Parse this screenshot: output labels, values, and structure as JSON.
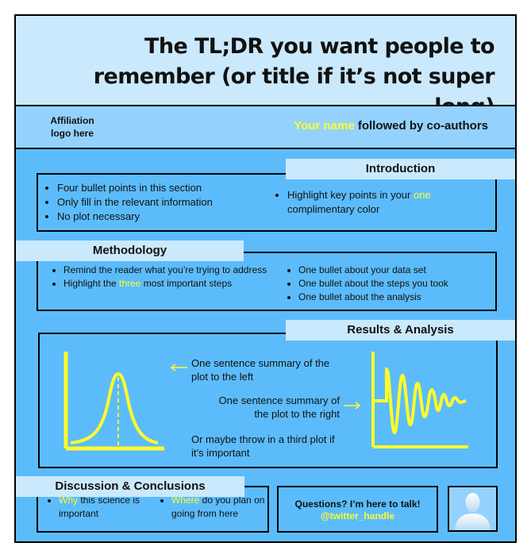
{
  "title": {
    "text": "The TL;DR you want people to remember (or title if it’s not super long)"
  },
  "header": {
    "affiliation": "Affiliation logo here",
    "author_name": "Your name",
    "author_rest": " followed by co-authors"
  },
  "introduction": {
    "heading": "Introduction",
    "bullets_left": [
      "Four bullet points in this section",
      "Only fill in the relevant information",
      "No plot necessary"
    ],
    "bullet_right_pre": "Highlight key points in your ",
    "bullet_right_hl": "one",
    "bullet_right_post": " complimentary color"
  },
  "methodology": {
    "heading": "Methodology",
    "bullet1": "Remind the reader what you’re trying to address",
    "bullet2_pre": "Highlight the ",
    "bullet2_hl": "three",
    "bullet2_post": " most important steps",
    "bullets_right": [
      "One bullet about your data set",
      "One bullet about the steps you took",
      "One bullet about the analysis"
    ]
  },
  "results": {
    "heading": "Results & Analysis",
    "summary_left": "One sentence summary of the plot to the left",
    "summary_right": "One sentence summary of the plot to the right",
    "third_plot": "Or maybe throw in a third plot if it’s important"
  },
  "discussion": {
    "heading": "Discussion & Conclusions",
    "b1_hl": "Why",
    "b1_rest": " this science is important",
    "b2_hl": "Where",
    "b2_rest": " do you plan on going from here"
  },
  "contact": {
    "question": "Questions? I’m here to talk!",
    "handle": "@twitter_handle"
  },
  "colors": {
    "background": "#5cbcfb",
    "light_panel": "#cbe9fd",
    "mid_panel": "#94d2fd",
    "accent": "#fffb2a"
  },
  "icons": {
    "avatar": "person-silhouette-icon",
    "arrow_left": "arrow-left-icon",
    "arrow_right": "arrow-right-icon"
  }
}
